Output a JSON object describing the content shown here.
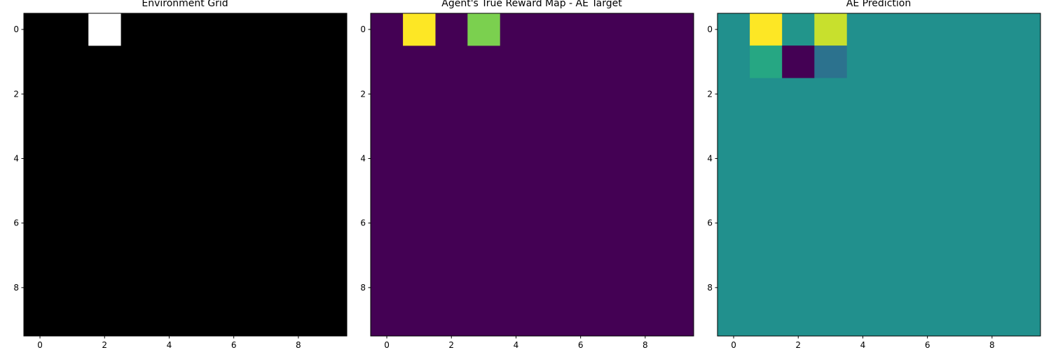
{
  "chart_data": [
    {
      "type": "heatmap",
      "title": "Environment Grid",
      "colormap": "gray",
      "vmin": 0,
      "vmax": 1,
      "rows": 10,
      "cols": 10,
      "xticks": [
        0,
        2,
        4,
        6,
        8
      ],
      "yticks": [
        0,
        2,
        4,
        6,
        8
      ],
      "background_value": 0,
      "cells": [
        {
          "row": 0,
          "col": 2,
          "value": 1
        }
      ]
    },
    {
      "type": "heatmap",
      "title": "Agent's True Reward Map - AE Target",
      "colormap": "viridis",
      "vmin": 0,
      "vmax": 1,
      "rows": 10,
      "cols": 10,
      "xticks": [
        0,
        2,
        4,
        6,
        8
      ],
      "yticks": [
        0,
        2,
        4,
        6,
        8
      ],
      "background_value": 0,
      "cells": [
        {
          "row": 0,
          "col": 1,
          "value": 1.0
        },
        {
          "row": 0,
          "col": 3,
          "value": 0.8
        }
      ]
    },
    {
      "type": "heatmap",
      "title": "AE Prediction",
      "colormap": "viridis",
      "vmin": 0,
      "vmax": 1,
      "rows": 10,
      "cols": 10,
      "xticks": [
        0,
        2,
        4,
        6,
        8
      ],
      "yticks": [
        0,
        2,
        4,
        6,
        8
      ],
      "background_value": 0.5,
      "cells": [
        {
          "row": 0,
          "col": 1,
          "value": 1.0
        },
        {
          "row": 0,
          "col": 2,
          "value": 0.52
        },
        {
          "row": 0,
          "col": 3,
          "value": 0.92
        },
        {
          "row": 1,
          "col": 1,
          "value": 0.6
        },
        {
          "row": 1,
          "col": 2,
          "value": 0.0
        },
        {
          "row": 1,
          "col": 3,
          "value": 0.38
        }
      ]
    }
  ]
}
